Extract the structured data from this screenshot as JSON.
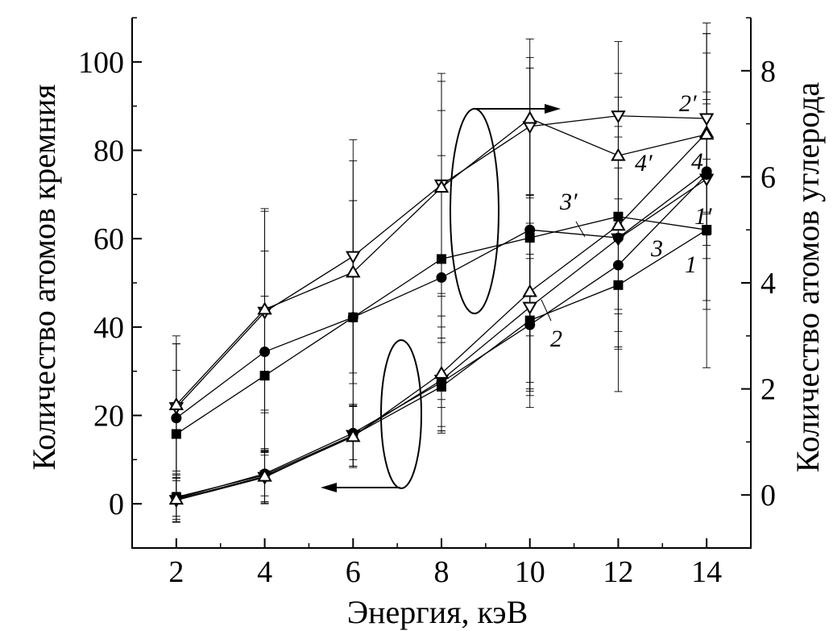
{
  "chart_data": {
    "type": "line",
    "xlabel": "Энергия, кэВ",
    "ylabel_left": "Количество атомов кремния",
    "ylabel_right": "Количество атомов углерода",
    "x": [
      2,
      4,
      6,
      8,
      10,
      12,
      14
    ],
    "xlim": [
      1,
      15
    ],
    "ylim_left": [
      -10,
      110
    ],
    "ylim_right": [
      -1,
      9
    ],
    "x_ticks": [
      2,
      4,
      6,
      8,
      10,
      12,
      14
    ],
    "y_left_ticks": [
      0,
      20,
      40,
      60,
      80,
      100
    ],
    "y_right_ticks": [
      0,
      2,
      4,
      6,
      8
    ],
    "grid": false,
    "series": [
      {
        "id": "1",
        "label": "1",
        "axis": "left",
        "marker": "square",
        "values": [
          1.5,
          6.5,
          15.5,
          26.5,
          41.5,
          49.5,
          62
        ],
        "errors": [
          5,
          6,
          7,
          10,
          14,
          14,
          16
        ]
      },
      {
        "id": "2",
        "label": "2",
        "axis": "left",
        "marker": "triangle-down-open",
        "values": [
          0.8,
          6.0,
          15.5,
          28.0,
          44.5,
          60.0,
          73.5
        ],
        "errors": [
          5,
          6,
          7,
          12,
          19,
          16,
          18
        ]
      },
      {
        "id": "3",
        "label": "3",
        "axis": "left",
        "marker": "circle",
        "values": [
          1.2,
          6.8,
          16.0,
          27.5,
          40.5,
          54.0,
          74.5
        ],
        "errors": [
          4,
          5,
          6,
          10,
          16,
          15,
          16
        ]
      },
      {
        "id": "4",
        "label": "4",
        "axis": "left",
        "marker": "triangle-up-open",
        "values": [
          1.0,
          6.2,
          15.2,
          29.5,
          48.0,
          63.0,
          84.0
        ],
        "errors": [
          5,
          6,
          7,
          13,
          22,
          20,
          18
        ]
      },
      {
        "id": "1p",
        "label": "1′",
        "axis": "right",
        "marker": "square",
        "values": [
          1.15,
          2.25,
          3.35,
          4.45,
          4.85,
          5.25,
          5.0
        ],
        "errors": [
          1.2,
          1.5,
          2.2,
          2.8,
          3.2,
          3.3,
          2.6
        ]
      },
      {
        "id": "2p",
        "label": "2′",
        "axis": "right",
        "marker": "triangle-down-open",
        "values": [
          1.65,
          3.45,
          4.5,
          5.85,
          6.95,
          7.15,
          7.1
        ],
        "errors": [
          1.2,
          1.9,
          2.2,
          2.1,
          1.3,
          0.8,
          1.8
        ]
      },
      {
        "id": "3p",
        "label": "3′",
        "axis": "right",
        "marker": "circle",
        "values": [
          1.45,
          2.7,
          3.35,
          4.1,
          5.0,
          4.85,
          6.1
        ],
        "errors": [
          1.4,
          1.9,
          2.2,
          2.3,
          2.0,
          2.1,
          2.6
        ]
      },
      {
        "id": "4p",
        "label": "4′",
        "axis": "right",
        "marker": "triangle-up-open",
        "values": [
          1.7,
          3.5,
          4.2,
          5.8,
          7.1,
          6.4,
          6.8
        ],
        "errors": [
          1.3,
          1.9,
          2.1,
          2.0,
          1.5,
          1.1,
          1.9
        ]
      }
    ]
  }
}
